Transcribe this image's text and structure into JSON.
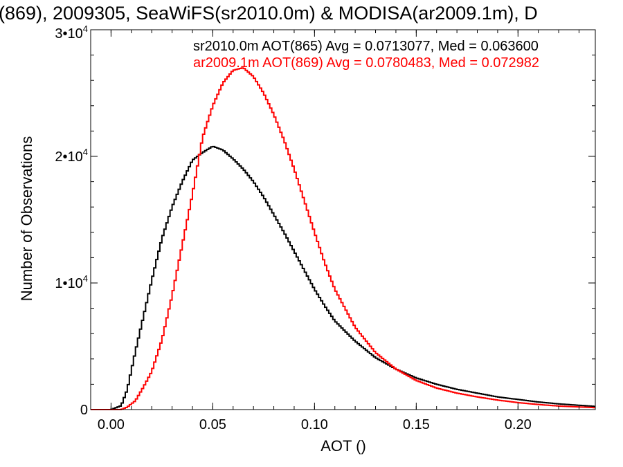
{
  "chart_data": {
    "type": "line",
    "title": "(869), 2009305, SeaWiFS(sr2010.0m) & MODISA(ar2009.1m), D",
    "xlabel": "AOT ()",
    "ylabel": "Number of Observations",
    "xlim": [
      -0.01,
      0.238
    ],
    "ylim": [
      0,
      30000
    ],
    "x_ticks": [
      {
        "value": 0.0,
        "label": "0.00"
      },
      {
        "value": 0.05,
        "label": "0.05"
      },
      {
        "value": 0.1,
        "label": "0.10"
      },
      {
        "value": 0.15,
        "label": "0.15"
      },
      {
        "value": 0.2,
        "label": "0.20"
      }
    ],
    "y_ticks": [
      {
        "value": 0,
        "mantissa": "0",
        "exp": ""
      },
      {
        "value": 10000,
        "mantissa": "1•10",
        "exp": "4"
      },
      {
        "value": 20000,
        "mantissa": "2•10",
        "exp": "4"
      },
      {
        "value": 30000,
        "mantissa": "3•10",
        "exp": "4"
      }
    ],
    "grid": false,
    "series": [
      {
        "name": "sr2010.0m AOT(865) Avg = 0.0713077, Med = 0.063600",
        "color": "#000000",
        "x": [
          -0.01,
          0.0,
          0.005,
          0.008,
          0.012,
          0.016,
          0.02,
          0.025,
          0.03,
          0.035,
          0.04,
          0.045,
          0.05,
          0.055,
          0.06,
          0.065,
          0.07,
          0.075,
          0.08,
          0.085,
          0.09,
          0.095,
          0.1,
          0.105,
          0.11,
          0.12,
          0.13,
          0.14,
          0.15,
          0.16,
          0.17,
          0.18,
          0.19,
          0.2,
          0.21,
          0.22,
          0.238
        ],
        "y": [
          0,
          0,
          300,
          1600,
          4600,
          7400,
          10200,
          13500,
          16000,
          18000,
          19700,
          20300,
          20800,
          20500,
          19800,
          19000,
          18000,
          16800,
          15400,
          14000,
          12500,
          11000,
          9500,
          8200,
          7000,
          5400,
          4100,
          3200,
          2500,
          2000,
          1600,
          1300,
          1000,
          800,
          600,
          450,
          250
        ]
      },
      {
        "name": "ar2009.1m AOT(869) Avg = 0.0780483, Med = 0.072982",
        "color": "#ff0000",
        "x": [
          -0.01,
          0.0,
          0.005,
          0.008,
          0.012,
          0.016,
          0.02,
          0.025,
          0.03,
          0.035,
          0.04,
          0.045,
          0.05,
          0.055,
          0.06,
          0.065,
          0.07,
          0.075,
          0.08,
          0.085,
          0.09,
          0.095,
          0.1,
          0.105,
          0.11,
          0.12,
          0.13,
          0.14,
          0.15,
          0.16,
          0.17,
          0.18,
          0.19,
          0.2,
          0.21,
          0.22,
          0.238
        ],
        "y": [
          0,
          0,
          0,
          200,
          700,
          1800,
          3000,
          5500,
          9000,
          13000,
          17000,
          21500,
          24000,
          25800,
          26800,
          27000,
          26300,
          25000,
          23300,
          21300,
          19000,
          16500,
          14000,
          11600,
          9500,
          6500,
          4500,
          3200,
          2300,
          1700,
          1300,
          1000,
          750,
          550,
          400,
          280,
          150
        ]
      }
    ]
  }
}
